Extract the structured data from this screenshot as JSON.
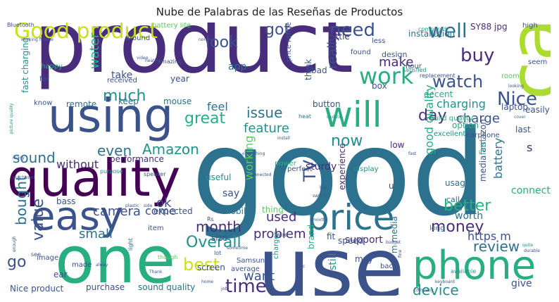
{
  "title": "Nube de Palabras de las Reseñas de Productos",
  "colors": {
    "c1": "#440154",
    "c2": "#472d7b",
    "c3": "#3b528b",
    "c4": "#2c728e",
    "c5": "#21918c",
    "c6": "#28ae80",
    "c7": "#5ec962",
    "c8": "#addc30",
    "c9": "#c9e020"
  },
  "words": [
    {
      "text": "product",
      "c": "c2"
    },
    {
      "text": "good",
      "c": "c4"
    },
    {
      "text": "use",
      "c": "c3"
    },
    {
      "text": "one",
      "c": "c6"
    },
    {
      "text": "cable",
      "c": "c8"
    },
    {
      "text": "phone",
      "c": "c6"
    },
    {
      "text": "quality",
      "c": "c1"
    },
    {
      "text": "using",
      "c": "c3"
    },
    {
      "text": "easy",
      "c": "c3"
    },
    {
      "text": "price",
      "c": "c4"
    },
    {
      "text": "will",
      "c": "c6"
    },
    {
      "text": "Good product",
      "c": "c9"
    },
    {
      "text": "work",
      "c": "c6"
    },
    {
      "text": "time",
      "c": "c2"
    },
    {
      "text": "Nice",
      "c": "c3"
    },
    {
      "text": "need",
      "c": "c3"
    },
    {
      "text": "well",
      "c": "c4"
    },
    {
      "text": "buy",
      "c": "c2"
    },
    {
      "text": "watch",
      "c": "c3"
    },
    {
      "text": "look",
      "c": "c3"
    },
    {
      "text": "got",
      "c": "c3"
    },
    {
      "text": "much",
      "c": "c5"
    },
    {
      "text": "day",
      "c": "c2"
    },
    {
      "text": "Amazon",
      "c": "c5"
    },
    {
      "text": "issue",
      "c": "c4"
    },
    {
      "text": "great",
      "c": "c6"
    },
    {
      "text": "feature",
      "c": "c5"
    },
    {
      "text": "even",
      "c": "c4"
    },
    {
      "text": "sound",
      "c": "c4"
    },
    {
      "text": "Overall",
      "c": "c5"
    },
    {
      "text": "money",
      "c": "c2"
    },
    {
      "text": "review",
      "c": "c4"
    },
    {
      "text": "device",
      "c": "c5"
    },
    {
      "text": "best",
      "c": "c9"
    },
    {
      "text": "month",
      "c": "c2"
    },
    {
      "text": "better",
      "c": "c6"
    },
    {
      "text": "charging",
      "c": "c5"
    },
    {
      "text": "charge",
      "c": "c3"
    },
    {
      "text": "make",
      "c": "c2"
    },
    {
      "text": "used",
      "c": "c2"
    },
    {
      "text": "now",
      "c": "c5"
    },
    {
      "text": "TV",
      "c": "c3"
    },
    {
      "text": "feel",
      "c": "c4"
    },
    {
      "text": "value",
      "c": "c3"
    },
    {
      "text": "bought",
      "c": "c4"
    },
    {
      "text": "go",
      "c": "c3"
    },
    {
      "text": "camera",
      "c": "c3"
    },
    {
      "text": "small",
      "c": "c4"
    },
    {
      "text": "water",
      "c": "c6"
    },
    {
      "text": "problem",
      "c": "c2"
    },
    {
      "text": "want",
      "c": "c3"
    },
    {
      "text": "worth",
      "c": "c4"
    },
    {
      "text": "really",
      "c": "c3"
    },
    {
      "text": "without",
      "c": "c2"
    },
    {
      "text": "ok",
      "c": "c3"
    },
    {
      "text": "come",
      "c": "c3"
    },
    {
      "text": "give",
      "c": "c3"
    },
    {
      "text": "working",
      "c": "c7"
    },
    {
      "text": "good quality",
      "c": "c6"
    },
    {
      "text": "battery",
      "c": "c4"
    },
    {
      "text": "SY88 jpg",
      "c": "c2"
    },
    {
      "text": "installation",
      "c": "c4"
    },
    {
      "text": "little",
      "c": "c2"
    },
    {
      "text": "design",
      "c": "c3"
    },
    {
      "text": "app",
      "c": "c4"
    },
    {
      "text": "take",
      "c": "c3"
    },
    {
      "text": "year",
      "c": "c3"
    },
    {
      "text": "keep",
      "c": "c4"
    },
    {
      "text": "mouse",
      "c": "c4"
    },
    {
      "text": "remote",
      "c": "c4"
    },
    {
      "text": "screen",
      "c": "c3"
    },
    {
      "text": "performance",
      "c": "c2"
    },
    {
      "text": "sturdy",
      "c": "c2"
    },
    {
      "text": "usage",
      "c": "c4"
    },
    {
      "text": "call",
      "c": "c4"
    },
    {
      "text": "laptop",
      "c": "c3"
    },
    {
      "text": "option",
      "c": "c6"
    },
    {
      "text": "excellent",
      "c": "c5"
    },
    {
      "text": "https m",
      "c": "c3"
    },
    {
      "text": "experience",
      "c": "c2"
    },
    {
      "text": "support",
      "c": "c2"
    },
    {
      "text": "say",
      "c": "c3"
    },
    {
      "text": "mobile",
      "c": "c4"
    },
    {
      "text": "size",
      "c": "c3"
    },
    {
      "text": "bass",
      "c": "c3"
    },
    {
      "text": "Nice product",
      "c": "c3"
    },
    {
      "text": "purchase",
      "c": "c3"
    },
    {
      "text": "sound quality",
      "c": "c4"
    },
    {
      "text": "brand",
      "c": "c6"
    },
    {
      "text": "still",
      "c": "c5"
    },
    {
      "text": "may",
      "c": "c3"
    },
    {
      "text": "m media",
      "c": "c4"
    },
    {
      "text": "fit",
      "c": "c3"
    },
    {
      "text": "speed",
      "c": "c3"
    },
    {
      "text": "box",
      "c": "c3"
    },
    {
      "text": "button",
      "c": "c3"
    },
    {
      "text": "decent",
      "c": "c6"
    },
    {
      "text": "charger",
      "c": "c5"
    },
    {
      "text": "useful",
      "c": "c5"
    },
    {
      "text": "price range",
      "c": "c3"
    },
    {
      "text": "think",
      "c": "c3"
    },
    {
      "text": "bad",
      "c": "c3"
    },
    {
      "text": "fast charging",
      "c": "c5"
    },
    {
      "text": "media amazon",
      "c": "c3"
    },
    {
      "text": "s",
      "c": "c2"
    },
    {
      "text": "u",
      "c": "c3"
    },
    {
      "text": "low",
      "c": "c2"
    },
    {
      "text": "thing",
      "c": "c7"
    },
    {
      "text": "expected",
      "c": "c3"
    },
    {
      "text": "item",
      "c": "c3"
    },
    {
      "text": "connect",
      "c": "c6"
    },
    {
      "text": "light",
      "c": "c4"
    },
    {
      "text": "made",
      "c": "c3"
    },
    {
      "text": "ear",
      "c": "c3"
    },
    {
      "text": "Samsung",
      "c": "c3"
    },
    {
      "text": "average",
      "c": "c3"
    },
    {
      "text": "long",
      "c": "c4"
    },
    {
      "text": "back",
      "c": "c3"
    },
    {
      "text": "first",
      "c": "c6"
    },
    {
      "text": "last",
      "c": "c3"
    },
    {
      "text": "easily",
      "c": "c3"
    },
    {
      "text": "high",
      "c": "c3"
    },
    {
      "text": "seem",
      "c": "c3"
    },
    {
      "text": "earphone",
      "c": "c3"
    },
    {
      "text": "build quality",
      "c": "c6"
    },
    {
      "text": "room",
      "c": "c7"
    },
    {
      "text": "less",
      "c": "c3"
    },
    {
      "text": "hour",
      "c": "c3"
    },
    {
      "text": "found",
      "c": "c3"
    },
    {
      "text": "received",
      "c": "c3"
    },
    {
      "text": "happy",
      "c": "c6"
    },
    {
      "text": "far",
      "c": "c3"
    },
    {
      "text": "know",
      "c": "c3"
    },
    {
      "text": "battery life",
      "c": "c7"
    },
    {
      "text": "working fine",
      "c": "c3"
    },
    {
      "text": "around",
      "c": "c3"
    },
    {
      "text": "compared",
      "c": "c5"
    },
    {
      "text": "satisfied",
      "c": "c5"
    },
    {
      "text": "replacement",
      "c": "c3"
    },
    {
      "text": "perfect",
      "c": "c3"
    },
    {
      "text": "power",
      "c": "c6"
    },
    {
      "text": "display",
      "c": "c5"
    },
    {
      "text": "purpose",
      "c": "c5"
    },
    {
      "text": "speaker",
      "c": "c3"
    },
    {
      "text": "wire",
      "c": "c3"
    },
    {
      "text": "image",
      "c": "c3"
    },
    {
      "text": "see",
      "c": "c3"
    },
    {
      "text": "Rs",
      "c": "c3"
    },
    {
      "text": "lot",
      "c": "c3"
    },
    {
      "text": "though",
      "c": "c7"
    },
    {
      "text": "available",
      "c": "c5"
    },
    {
      "text": "heat",
      "c": "c4"
    },
    {
      "text": "cover",
      "c": "c4"
    },
    {
      "text": "case",
      "c": "c3"
    },
    {
      "text": "amazing",
      "c": "c3"
    },
    {
      "text": "picture quality",
      "c": "c5"
    },
    {
      "text": "quite",
      "c": "c5"
    },
    {
      "text": "durable",
      "c": "c3"
    },
    {
      "text": "switch",
      "c": "c3"
    },
    {
      "text": "company",
      "c": "c3"
    },
    {
      "text": "Thank",
      "c": "c3"
    },
    {
      "text": "everything",
      "c": "c3"
    },
    {
      "text": "smooth",
      "c": "c3"
    },
    {
      "text": "update",
      "c": "c5"
    },
    {
      "text": "connected",
      "c": "c3"
    },
    {
      "text": "big",
      "c": "c3"
    },
    {
      "text": "install",
      "c": "c3"
    },
    {
      "text": "keyboard",
      "c": "c3"
    },
    {
      "text": "looking",
      "c": "c3"
    },
    {
      "text": "fast",
      "c": "c3"
    },
    {
      "text": "video",
      "c": "c3"
    },
    {
      "text": "heating",
      "c": "c3"
    },
    {
      "text": "sometime",
      "c": "c3"
    },
    {
      "text": "etc",
      "c": "c3"
    },
    {
      "text": "normal",
      "c": "c3"
    },
    {
      "text": "home",
      "c": "c3"
    },
    {
      "text": "job",
      "c": "c3"
    },
    {
      "text": "side",
      "c": "c3"
    },
    {
      "text": "plastic",
      "c": "c3"
    },
    {
      "text": "alway",
      "c": "c3"
    },
    {
      "text": "many",
      "c": "c3"
    },
    {
      "text": "fine",
      "c": "c3"
    },
    {
      "text": "budget",
      "c": "c3"
    },
    {
      "text": "enough",
      "c": "c3"
    },
    {
      "text": "purchased",
      "c": "c3"
    },
    {
      "text": "Bluetooth",
      "c": "c3"
    }
  ]
}
